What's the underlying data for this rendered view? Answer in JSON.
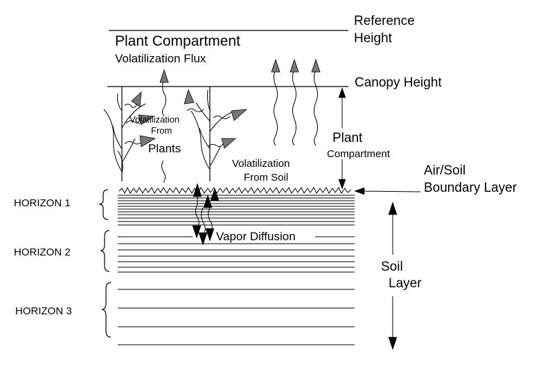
{
  "labels": {
    "reference_height": [
      "Reference",
      "Height"
    ],
    "plant_compartment_title": "Plant Compartment",
    "volatilization_flux": "Volatilization Flux",
    "canopy_height": "Canopy Height",
    "volatilization_from_plants": [
      "Volatilization",
      "From",
      "Plants"
    ],
    "plant_compartment_side": [
      "Plant",
      "Compartment"
    ],
    "volatilization_from_soil": [
      "Volatilization",
      "From Soil"
    ],
    "air_soil_boundary": [
      "Air/Soil",
      "Boundary Layer"
    ],
    "vapor_diffusion": "Vapor Diffusion",
    "soil_layer": [
      "Soil",
      "Layer"
    ],
    "horizons": [
      "HORIZON 1",
      "HORIZON 2",
      "HORIZON 3"
    ]
  },
  "colors": {
    "line": "#000000",
    "arrow_fill": "#777777",
    "background": "#ffffff"
  }
}
